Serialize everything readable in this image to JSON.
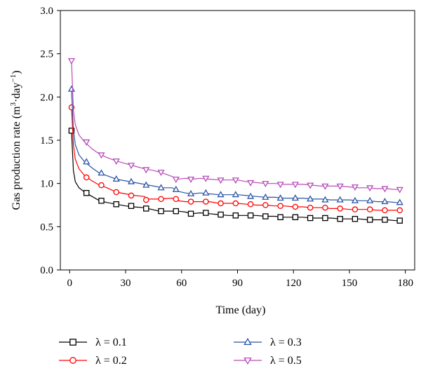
{
  "chart_data": {
    "type": "line",
    "title": "",
    "xlabel": "Time (day)",
    "ylabel_main": "Gas production rate (m",
    "ylabel_sup1": "3",
    "ylabel_mid": "·day",
    "ylabel_sup2": "−1",
    "ylabel_end": ")",
    "xlim": [
      -5,
      185
    ],
    "ylim": [
      0,
      3.0
    ],
    "x_ticks": [
      0,
      30,
      60,
      90,
      120,
      150,
      180
    ],
    "y_ticks": [
      0.0,
      0.5,
      1.0,
      1.5,
      2.0,
      2.5,
      3.0
    ],
    "x_tick_labels": [
      "0",
      "30",
      "60",
      "90",
      "120",
      "150",
      "180"
    ],
    "y_tick_labels": [
      "0.0",
      "0.5",
      "1.0",
      "1.5",
      "2.0",
      "2.5",
      "3.0"
    ],
    "legend_position": "bottom",
    "grid": false,
    "series": [
      {
        "name": "λ = 0.1",
        "color": "#000000",
        "marker": "square",
        "line": [
          [
            1,
            1.61
          ],
          [
            2,
            1.15
          ],
          [
            3,
            1.02
          ],
          [
            5,
            0.95
          ],
          [
            8,
            0.9
          ],
          [
            12,
            0.85
          ],
          [
            16,
            0.8
          ],
          [
            20,
            0.78
          ],
          [
            25,
            0.76
          ],
          [
            30,
            0.74
          ],
          [
            34,
            0.73
          ],
          [
            40,
            0.72
          ],
          [
            44,
            0.7
          ],
          [
            48,
            0.68
          ],
          [
            55,
            0.68
          ],
          [
            58,
            0.68
          ],
          [
            62,
            0.67
          ],
          [
            65,
            0.65
          ],
          [
            70,
            0.66
          ],
          [
            75,
            0.65
          ],
          [
            80,
            0.64
          ],
          [
            85,
            0.63
          ],
          [
            90,
            0.63
          ],
          [
            95,
            0.63
          ],
          [
            100,
            0.63
          ],
          [
            105,
            0.62
          ],
          [
            110,
            0.62
          ],
          [
            115,
            0.61
          ],
          [
            120,
            0.61
          ],
          [
            125,
            0.61
          ],
          [
            130,
            0.6
          ],
          [
            135,
            0.6
          ],
          [
            140,
            0.6
          ],
          [
            145,
            0.59
          ],
          [
            150,
            0.59
          ],
          [
            155,
            0.59
          ],
          [
            160,
            0.58
          ],
          [
            165,
            0.58
          ],
          [
            170,
            0.58
          ],
          [
            175,
            0.57
          ],
          [
            178,
            0.57
          ]
        ],
        "markers": [
          [
            1,
            1.61
          ],
          [
            9,
            0.89
          ],
          [
            17,
            0.8
          ],
          [
            25,
            0.76
          ],
          [
            33,
            0.74
          ],
          [
            41,
            0.71
          ],
          [
            49,
            0.68
          ],
          [
            57,
            0.68
          ],
          [
            65,
            0.65
          ],
          [
            73,
            0.66
          ],
          [
            81,
            0.64
          ],
          [
            89,
            0.63
          ],
          [
            97,
            0.63
          ],
          [
            105,
            0.62
          ],
          [
            113,
            0.61
          ],
          [
            121,
            0.61
          ],
          [
            129,
            0.6
          ],
          [
            137,
            0.6
          ],
          [
            145,
            0.59
          ],
          [
            153,
            0.59
          ],
          [
            161,
            0.58
          ],
          [
            169,
            0.58
          ],
          [
            177,
            0.57
          ]
        ]
      },
      {
        "name": "λ = 0.2",
        "color": "#ff0000",
        "marker": "circle",
        "line": [
          [
            1,
            1.88
          ],
          [
            2,
            1.45
          ],
          [
            3,
            1.28
          ],
          [
            5,
            1.17
          ],
          [
            8,
            1.09
          ],
          [
            12,
            1.03
          ],
          [
            16,
            0.98
          ],
          [
            20,
            0.95
          ],
          [
            25,
            0.9
          ],
          [
            30,
            0.88
          ],
          [
            35,
            0.86
          ],
          [
            40,
            0.85
          ],
          [
            42,
            0.82
          ],
          [
            48,
            0.82
          ],
          [
            55,
            0.83
          ],
          [
            58,
            0.8
          ],
          [
            62,
            0.79
          ],
          [
            66,
            0.79
          ],
          [
            70,
            0.79
          ],
          [
            75,
            0.79
          ],
          [
            80,
            0.77
          ],
          [
            85,
            0.77
          ],
          [
            90,
            0.77
          ],
          [
            95,
            0.76
          ],
          [
            100,
            0.75
          ],
          [
            105,
            0.75
          ],
          [
            110,
            0.74
          ],
          [
            115,
            0.74
          ],
          [
            120,
            0.73
          ],
          [
            125,
            0.73
          ],
          [
            130,
            0.72
          ],
          [
            135,
            0.72
          ],
          [
            140,
            0.71
          ],
          [
            145,
            0.71
          ],
          [
            150,
            0.7
          ],
          [
            155,
            0.7
          ],
          [
            160,
            0.7
          ],
          [
            165,
            0.69
          ],
          [
            170,
            0.69
          ],
          [
            175,
            0.69
          ],
          [
            178,
            0.69
          ]
        ],
        "markers": [
          [
            1,
            1.88
          ],
          [
            9,
            1.07
          ],
          [
            17,
            0.98
          ],
          [
            25,
            0.9
          ],
          [
            33,
            0.86
          ],
          [
            41,
            0.81
          ],
          [
            49,
            0.82
          ],
          [
            57,
            0.82
          ],
          [
            65,
            0.79
          ],
          [
            73,
            0.79
          ],
          [
            81,
            0.77
          ],
          [
            89,
            0.77
          ],
          [
            97,
            0.76
          ],
          [
            105,
            0.75
          ],
          [
            113,
            0.74
          ],
          [
            121,
            0.73
          ],
          [
            129,
            0.72
          ],
          [
            137,
            0.72
          ],
          [
            145,
            0.71
          ],
          [
            153,
            0.7
          ],
          [
            161,
            0.7
          ],
          [
            169,
            0.69
          ],
          [
            177,
            0.69
          ]
        ]
      },
      {
        "name": "λ = 0.3",
        "color": "#2a55a5",
        "marker": "triangle-up",
        "line": [
          [
            1,
            2.09
          ],
          [
            2,
            1.62
          ],
          [
            3,
            1.45
          ],
          [
            5,
            1.33
          ],
          [
            8,
            1.25
          ],
          [
            12,
            1.18
          ],
          [
            16,
            1.12
          ],
          [
            20,
            1.09
          ],
          [
            25,
            1.05
          ],
          [
            30,
            1.03
          ],
          [
            35,
            1.01
          ],
          [
            40,
            0.99
          ],
          [
            45,
            0.97
          ],
          [
            50,
            0.95
          ],
          [
            55,
            0.95
          ],
          [
            58,
            0.91
          ],
          [
            62,
            0.89
          ],
          [
            66,
            0.88
          ],
          [
            70,
            0.89
          ],
          [
            75,
            0.88
          ],
          [
            80,
            0.87
          ],
          [
            85,
            0.87
          ],
          [
            90,
            0.87
          ],
          [
            95,
            0.86
          ],
          [
            100,
            0.85
          ],
          [
            105,
            0.84
          ],
          [
            110,
            0.84
          ],
          [
            115,
            0.83
          ],
          [
            120,
            0.83
          ],
          [
            125,
            0.83
          ],
          [
            130,
            0.82
          ],
          [
            135,
            0.82
          ],
          [
            140,
            0.81
          ],
          [
            145,
            0.81
          ],
          [
            150,
            0.81
          ],
          [
            155,
            0.8
          ],
          [
            160,
            0.8
          ],
          [
            165,
            0.79
          ],
          [
            170,
            0.79
          ],
          [
            175,
            0.78
          ],
          [
            178,
            0.78
          ]
        ],
        "markers": [
          [
            1,
            2.09
          ],
          [
            9,
            1.25
          ],
          [
            17,
            1.12
          ],
          [
            25,
            1.05
          ],
          [
            33,
            1.02
          ],
          [
            41,
            0.98
          ],
          [
            49,
            0.95
          ],
          [
            57,
            0.93
          ],
          [
            65,
            0.88
          ],
          [
            73,
            0.89
          ],
          [
            81,
            0.87
          ],
          [
            89,
            0.87
          ],
          [
            97,
            0.85
          ],
          [
            105,
            0.84
          ],
          [
            113,
            0.83
          ],
          [
            121,
            0.83
          ],
          [
            129,
            0.82
          ],
          [
            137,
            0.81
          ],
          [
            145,
            0.81
          ],
          [
            153,
            0.8
          ],
          [
            161,
            0.8
          ],
          [
            169,
            0.79
          ],
          [
            177,
            0.78
          ]
        ]
      },
      {
        "name": "λ = 0.5",
        "color": "#b84bb8",
        "marker": "triangle-down",
        "line": [
          [
            1,
            2.42
          ],
          [
            2,
            1.85
          ],
          [
            3,
            1.68
          ],
          [
            5,
            1.56
          ],
          [
            8,
            1.48
          ],
          [
            12,
            1.4
          ],
          [
            16,
            1.34
          ],
          [
            20,
            1.3
          ],
          [
            25,
            1.26
          ],
          [
            30,
            1.23
          ],
          [
            35,
            1.2
          ],
          [
            40,
            1.17
          ],
          [
            45,
            1.15
          ],
          [
            50,
            1.12
          ],
          [
            55,
            1.08
          ],
          [
            58,
            1.05
          ],
          [
            62,
            1.06
          ],
          [
            66,
            1.05
          ],
          [
            70,
            1.06
          ],
          [
            75,
            1.05
          ],
          [
            80,
            1.04
          ],
          [
            85,
            1.04
          ],
          [
            90,
            1.04
          ],
          [
            95,
            1.02
          ],
          [
            100,
            1.01
          ],
          [
            105,
            1.0
          ],
          [
            110,
            1.0
          ],
          [
            115,
            0.99
          ],
          [
            120,
            0.99
          ],
          [
            125,
            0.99
          ],
          [
            130,
            0.98
          ],
          [
            135,
            0.97
          ],
          [
            140,
            0.97
          ],
          [
            145,
            0.97
          ],
          [
            150,
            0.96
          ],
          [
            155,
            0.95
          ],
          [
            160,
            0.95
          ],
          [
            165,
            0.94
          ],
          [
            170,
            0.94
          ],
          [
            175,
            0.93
          ],
          [
            178,
            0.93
          ]
        ],
        "markers": [
          [
            1,
            2.42
          ],
          [
            9,
            1.48
          ],
          [
            17,
            1.33
          ],
          [
            25,
            1.26
          ],
          [
            33,
            1.21
          ],
          [
            41,
            1.16
          ],
          [
            49,
            1.13
          ],
          [
            57,
            1.05
          ],
          [
            65,
            1.05
          ],
          [
            73,
            1.06
          ],
          [
            81,
            1.04
          ],
          [
            89,
            1.04
          ],
          [
            97,
            1.01
          ],
          [
            105,
            1.0
          ],
          [
            113,
            0.99
          ],
          [
            121,
            0.99
          ],
          [
            129,
            0.98
          ],
          [
            137,
            0.97
          ],
          [
            145,
            0.97
          ],
          [
            153,
            0.96
          ],
          [
            161,
            0.95
          ],
          [
            169,
            0.94
          ],
          [
            177,
            0.93
          ]
        ]
      }
    ]
  }
}
